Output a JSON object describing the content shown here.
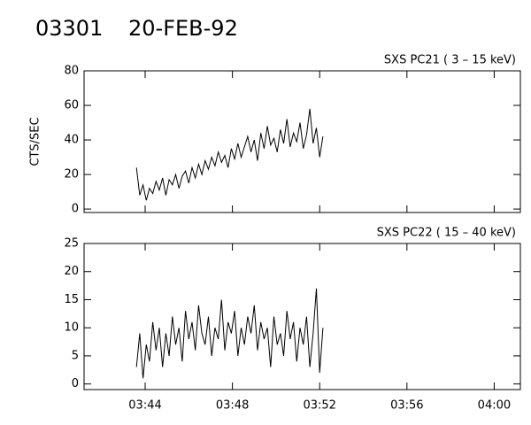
{
  "title": "03301",
  "date": "20-FEB-92",
  "chart_data": [
    {
      "type": "line",
      "title": "SXS PC21  (  3 – 15 keV)",
      "y_label": "CTS/SEC",
      "color": "#000000",
      "x": [
        223.6,
        223.75,
        223.9,
        224.05,
        224.2,
        224.35,
        224.5,
        224.65,
        224.8,
        224.95,
        225.1,
        225.25,
        225.4,
        225.55,
        225.7,
        225.85,
        226,
        226.15,
        226.3,
        226.45,
        226.6,
        226.75,
        226.9,
        227.05,
        227.2,
        227.35,
        227.5,
        227.65,
        227.8,
        227.95,
        228.1,
        228.25,
        228.4,
        228.55,
        228.7,
        228.85,
        229,
        229.15,
        229.3,
        229.45,
        229.6,
        229.75,
        229.9,
        230.05,
        230.2,
        230.35,
        230.5,
        230.65,
        230.8,
        230.95,
        231.1,
        231.25,
        231.4,
        231.55,
        231.7,
        231.85,
        232,
        232.15
      ],
      "values": [
        24,
        8,
        14,
        5,
        12,
        9,
        16,
        11,
        18,
        8,
        17,
        14,
        20,
        12,
        19,
        22,
        15,
        24,
        18,
        26,
        20,
        28,
        23,
        30,
        25,
        33,
        27,
        31,
        24,
        35,
        29,
        38,
        30,
        36,
        42,
        33,
        40,
        28,
        44,
        35,
        48,
        37,
        41,
        33,
        46,
        38,
        52,
        36,
        44,
        39,
        50,
        35,
        43,
        58,
        38,
        47,
        30,
        42
      ],
      "xlim": [
        221.2,
        241.2
      ],
      "xticks": [
        224,
        228,
        232,
        236,
        240
      ],
      "ylim": [
        -2,
        80
      ],
      "yticks": [
        0,
        20,
        40,
        60,
        80
      ]
    },
    {
      "type": "line",
      "title": "SXS PC22  ( 15 – 40 keV)",
      "color": "#000000",
      "x": [
        223.6,
        223.75,
        223.9,
        224.05,
        224.2,
        224.35,
        224.5,
        224.65,
        224.8,
        224.95,
        225.1,
        225.25,
        225.4,
        225.55,
        225.7,
        225.85,
        226,
        226.15,
        226.3,
        226.45,
        226.6,
        226.75,
        226.9,
        227.05,
        227.2,
        227.35,
        227.5,
        227.65,
        227.8,
        227.95,
        228.1,
        228.25,
        228.4,
        228.55,
        228.7,
        228.85,
        229,
        229.15,
        229.3,
        229.45,
        229.6,
        229.75,
        229.9,
        230.05,
        230.2,
        230.35,
        230.5,
        230.65,
        230.8,
        230.95,
        231.1,
        231.25,
        231.4,
        231.55,
        231.7,
        231.85,
        232,
        232.15
      ],
      "values": [
        3,
        9,
        1,
        7,
        4,
        11,
        6,
        10,
        3,
        9,
        5,
        12,
        7,
        10,
        4,
        13,
        8,
        11,
        6,
        14,
        9,
        7,
        12,
        5,
        10,
        8,
        15,
        6,
        11,
        9,
        13,
        5,
        10,
        7,
        12,
        9,
        14,
        6,
        11,
        8,
        10,
        3,
        12,
        7,
        9,
        5,
        13,
        8,
        11,
        4,
        10,
        7,
        12,
        3,
        9,
        17,
        2,
        10
      ],
      "xlim": [
        221.2,
        241.2
      ],
      "xticks": [
        {
          "value": 224,
          "label": "03:44"
        },
        {
          "value": 228,
          "label": "03:48"
        },
        {
          "value": 232,
          "label": "03:52"
        },
        {
          "value": 236,
          "label": "03:56"
        },
        {
          "value": 240,
          "label": "04:00"
        }
      ],
      "ylim": [
        -1,
        25
      ],
      "yticks": [
        0,
        5,
        10,
        15,
        20,
        25
      ]
    }
  ]
}
